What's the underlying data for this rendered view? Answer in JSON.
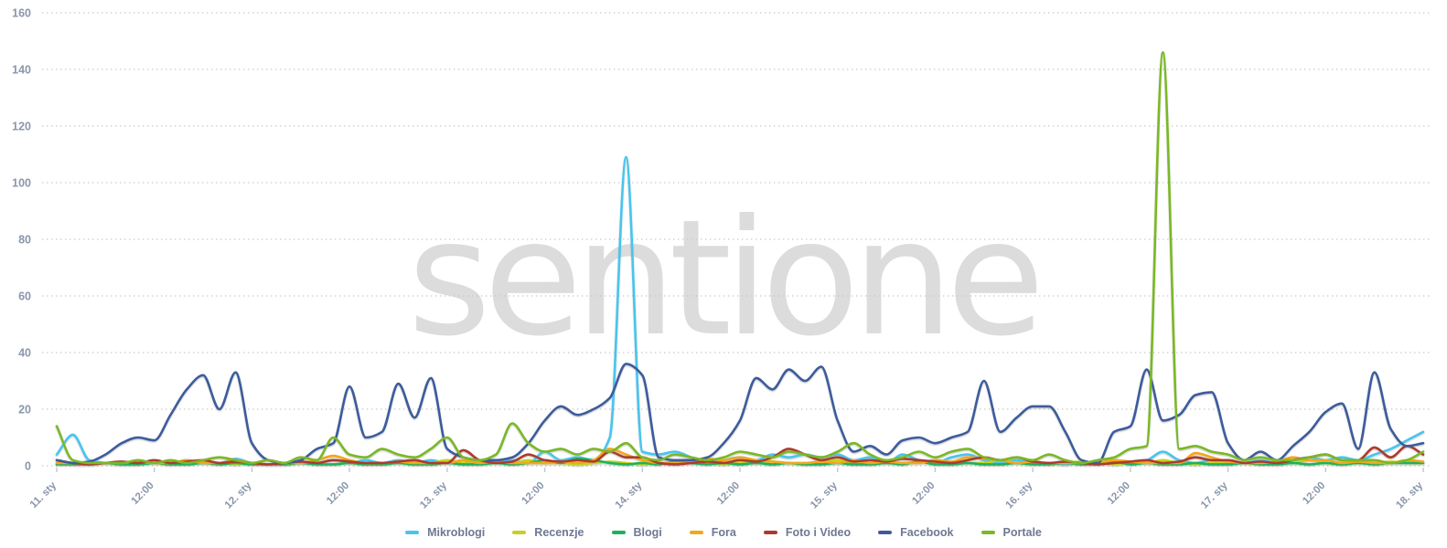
{
  "watermark": {
    "text": "sentione"
  },
  "chart_data": {
    "type": "line",
    "title": "",
    "xlabel": "",
    "ylabel": "",
    "ylim": [
      0,
      160
    ],
    "grid": "dotted horizontal gridlines",
    "legend_position": "bottom-center",
    "x_axis": {
      "unit": "time",
      "range": "11. sty 00:00 - 18. sty 00:00",
      "sample_step_hours": 2,
      "tick_every_hours": 12
    },
    "xticks": [
      "11. sty",
      "12:00",
      "12. sty",
      "12:00",
      "13. sty",
      "12:00",
      "14. sty",
      "12:00",
      "15. sty",
      "12:00",
      "16. sty",
      "12:00",
      "17. sty",
      "12:00",
      "18. sty"
    ],
    "yticks": [
      0,
      20,
      40,
      60,
      80,
      100,
      120,
      140,
      160
    ],
    "axis_label_color": "#8a96ab",
    "gridline_color": "#c8c8c8",
    "series": [
      {
        "name": "Mikroblogi",
        "color": "#49c4ee",
        "values": [
          4,
          11,
          2,
          1,
          0.5,
          0.5,
          1,
          1,
          2,
          1,
          1,
          2.5,
          1,
          0.5,
          0.5,
          1,
          1,
          2,
          1,
          2,
          1,
          2,
          1,
          2,
          1,
          1,
          2,
          1,
          2,
          1,
          5,
          2,
          3,
          2,
          10,
          109,
          5,
          4,
          5,
          3,
          1,
          2,
          3,
          2,
          4,
          3,
          4,
          3,
          4,
          2,
          3,
          1,
          4,
          2,
          1,
          3,
          4,
          2,
          1,
          2,
          1,
          1,
          0.5,
          1,
          1,
          2,
          1,
          2,
          5,
          2,
          1,
          2,
          1,
          1,
          2,
          1,
          2,
          3,
          2,
          3,
          2,
          4,
          6,
          9,
          12
        ]
      },
      {
        "name": "Recenzje",
        "color": "#c4d21f",
        "values": [
          1,
          0.5,
          0.5,
          1,
          0.5,
          1,
          1,
          0.5,
          1,
          1.5,
          1,
          0.5,
          1,
          0.5,
          0.5,
          1,
          1,
          2,
          1,
          0.5,
          1,
          1,
          0.5,
          1,
          2,
          1,
          0.5,
          1,
          1,
          2,
          1,
          1,
          0.5,
          1,
          1.5,
          1,
          0.5,
          1,
          1,
          2,
          1,
          0.5,
          1,
          1,
          1.5,
          1,
          0.5,
          1,
          2,
          1,
          0.5,
          1,
          1,
          1.5,
          1,
          0.5,
          1,
          1,
          2,
          1,
          0.5,
          1,
          1,
          1.5,
          1,
          0.5,
          1,
          1,
          2,
          1,
          0.5,
          1,
          1.5,
          1,
          0.5,
          1,
          1,
          2,
          1,
          0.5,
          1,
          1,
          1.5,
          1,
          1
        ]
      },
      {
        "name": "Blogi",
        "color": "#1cb35c",
        "values": [
          0.5,
          0.5,
          0.5,
          1,
          0.5,
          0.5,
          1,
          0.5,
          0.5,
          1,
          0.5,
          1,
          0.5,
          0.5,
          0.5,
          1,
          0.5,
          0.5,
          1,
          0.5,
          0.5,
          1,
          0.5,
          0.5,
          1,
          0.5,
          0.5,
          1,
          0.5,
          1,
          2,
          1,
          2.5,
          2,
          1,
          0.5,
          1,
          0.5,
          1.5,
          1,
          0.5,
          1,
          0.5,
          1,
          0.5,
          1,
          0.5,
          0.5,
          1,
          0.5,
          0.5,
          1,
          0.5,
          1.5,
          0.5,
          0.5,
          1,
          0.5,
          0.5,
          1,
          0.5,
          0.5,
          1,
          0.5,
          0.5,
          1.5,
          0.5,
          1,
          0.5,
          0.5,
          1,
          0.5,
          0.5,
          1,
          0.5,
          0.5,
          1,
          0.5,
          1,
          0.5,
          1,
          0.5,
          1,
          1,
          1
        ]
      },
      {
        "name": "Fora",
        "color": "#f2a71e",
        "values": [
          1,
          1,
          0.5,
          1,
          1,
          1.5,
          1,
          1,
          2,
          1,
          1,
          2,
          1,
          0.5,
          1,
          1,
          2,
          3.5,
          2,
          1,
          1,
          1.5,
          1,
          1,
          1,
          2,
          1,
          1.5,
          1,
          1,
          1,
          1.5,
          1,
          2,
          6,
          4,
          2,
          1,
          1,
          1,
          2.5,
          2,
          3,
          2,
          1.5,
          1,
          1,
          1.5,
          1,
          2,
          1,
          1.5,
          1,
          1,
          2,
          1.5,
          3,
          2.5,
          2,
          1,
          1.5,
          1,
          1,
          1,
          1,
          2,
          1.5,
          1,
          1,
          1,
          4.5,
          3,
          1.5,
          1,
          1,
          1.5,
          3,
          2,
          2,
          1,
          1.5,
          1,
          1,
          2,
          1.5
        ]
      },
      {
        "name": "Foto i Video",
        "color": "#ad3a2d",
        "values": [
          2,
          1,
          0.5,
          1,
          1.5,
          1,
          2,
          1,
          1.5,
          2,
          1,
          1.5,
          1,
          0.5,
          1,
          1.5,
          1,
          2,
          1.5,
          1,
          1,
          1.5,
          2,
          1,
          1,
          5.5,
          2,
          1,
          1.5,
          4,
          2,
          1.5,
          2,
          1.5,
          5,
          3,
          3,
          1,
          0.5,
          1,
          1.5,
          1,
          2,
          1.5,
          3,
          6,
          4,
          2,
          3,
          1.5,
          2,
          1.5,
          2.5,
          2,
          1.5,
          1,
          2,
          3,
          2,
          3,
          1.5,
          1,
          1.5,
          1,
          0.5,
          1,
          1.5,
          2,
          1,
          1.5,
          3,
          2,
          2,
          1,
          1.5,
          1,
          2,
          3,
          4,
          2,
          2,
          6.5,
          3,
          7,
          4
        ]
      },
      {
        "name": "Facebook",
        "color": "#3d5b9c",
        "values": [
          2,
          1,
          1.5,
          4,
          8,
          10,
          9,
          18,
          27,
          32,
          20,
          33,
          8,
          2,
          1,
          2,
          6,
          8,
          28,
          10,
          12,
          29,
          17,
          31,
          6,
          3,
          2,
          2,
          3,
          8,
          16,
          21,
          18,
          20,
          24,
          36,
          32,
          3,
          2,
          2,
          3,
          8,
          16,
          31,
          27,
          34,
          30,
          35,
          16,
          5,
          7,
          4,
          9,
          10,
          8,
          10,
          12,
          30,
          12,
          17,
          21,
          21,
          12,
          2,
          1,
          12,
          14,
          34,
          16,
          18,
          25,
          26,
          8,
          2,
          5,
          2,
          7,
          12,
          19,
          22,
          6,
          33,
          13,
          7,
          8
        ]
      },
      {
        "name": "Portale",
        "color": "#7ab827",
        "values": [
          14,
          2,
          1,
          1,
          1,
          2,
          1,
          2,
          1,
          2,
          3,
          2,
          1,
          2,
          1,
          3,
          2,
          10,
          4,
          3,
          6,
          4,
          3,
          6,
          10,
          3,
          2,
          4,
          15,
          8,
          5,
          6,
          4,
          6,
          5,
          8,
          3,
          2,
          4,
          3,
          2,
          3,
          5,
          4,
          3,
          5,
          4,
          3,
          5,
          8,
          4,
          2,
          3,
          5,
          3,
          5,
          6,
          3,
          2,
          3,
          2,
          4,
          2,
          1,
          2,
          3,
          6,
          7,
          146,
          6,
          7,
          5,
          4,
          2,
          3,
          2,
          2,
          3,
          4,
          2,
          2,
          2,
          1,
          2,
          5
        ]
      }
    ]
  }
}
